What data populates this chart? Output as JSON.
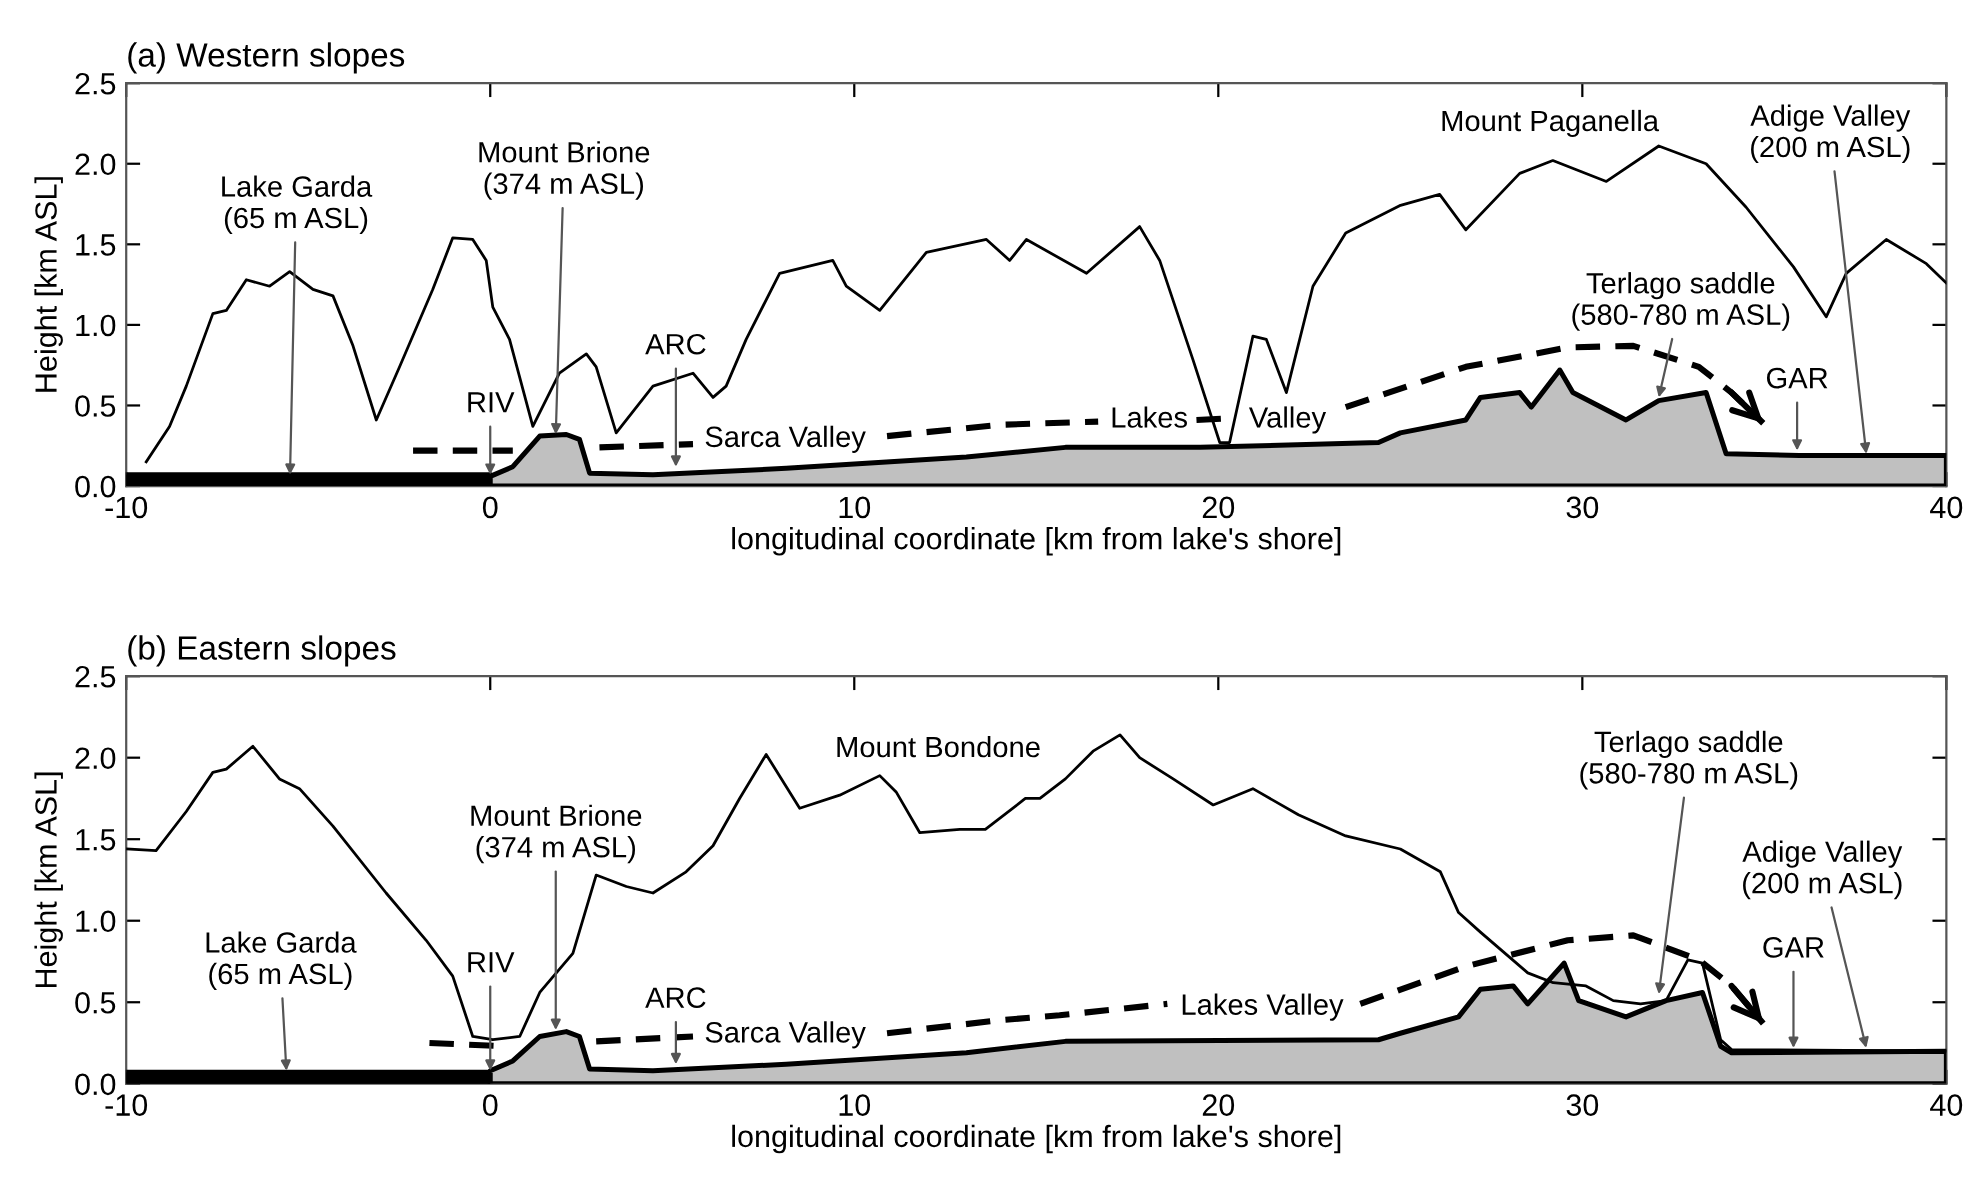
{
  "chart_data": [
    {
      "type": "line",
      "title": "(a) Western slopes",
      "xlabel": "longitudinal coordinate [km from lake's shore]",
      "ylabel": "Height [km ASL]",
      "xlim": [
        -10,
        40
      ],
      "xticks": [
        -10,
        0,
        10,
        20,
        30,
        40
      ],
      "ylim": [
        0,
        2.5
      ],
      "yticks": [
        {
          "value": 0,
          "label": "0.0"
        },
        0.5,
        {
          "value": 1,
          "label": "1.0"
        },
        1.5,
        {
          "value": 2,
          "label": "2.0"
        },
        2.5
      ],
      "series": [
        {
          "type": "area",
          "color": "#000000",
          "x": [
            -10,
            0
          ],
          "values": [
            0.07,
            0.07
          ]
        },
        {
          "type": "area",
          "color": "#c0c0c0",
          "x": [
            0,
            0.62,
            1.36,
            2.09,
            2.45,
            2.73,
            4.47,
            8.13,
            13.08,
            15.8,
            19.5,
            24.4,
            25.0,
            26.8,
            27.2,
            28.28,
            28.6,
            29.38,
            29.74,
            31.2,
            32.1,
            33.4,
            33.95,
            35.96,
            40
          ],
          "values": [
            0.06,
            0.12,
            0.31,
            0.32,
            0.29,
            0.08,
            0.07,
            0.11,
            0.18,
            0.24,
            0.24,
            0.27,
            0.33,
            0.41,
            0.55,
            0.58,
            0.49,
            0.72,
            0.58,
            0.41,
            0.53,
            0.58,
            0.2,
            0.19,
            0.19
          ]
        },
        {
          "color": "#000000",
          "line_style": "solid",
          "x": [
            -9.45,
            -8.81,
            -8.35,
            -7.62,
            -7.25,
            -6.7,
            -6.06,
            -5.51,
            -4.87,
            -4.32,
            -3.77,
            -3.13,
            -2.49,
            -1.58,
            -1.03,
            -0.48,
            -0.11,
            0.07,
            0.53,
            1.17,
            1.9,
            2.64,
            2.91,
            3.46,
            4.47,
            5.57,
            6.12,
            6.48,
            7.03,
            7.95,
            9.41,
            9.78,
            10.7,
            11.98,
            13.63,
            14.27,
            14.73,
            16.38,
            17.84,
            18.39,
            19.31,
            20.04,
            20.31,
            20.95,
            21.32,
            21.87,
            22.6,
            23.5,
            24.98,
            26.08,
            26.8,
            28.28,
            29.19,
            30.66,
            32.1,
            33.4,
            34.5,
            35.8,
            36.7,
            37.25,
            38.35,
            39.45,
            40
          ],
          "values": [
            0.15,
            0.37,
            0.62,
            1.07,
            1.09,
            1.28,
            1.24,
            1.33,
            1.22,
            1.18,
            0.87,
            0.41,
            0.74,
            1.22,
            1.54,
            1.53,
            1.4,
            1.11,
            0.91,
            0.37,
            0.7,
            0.82,
            0.74,
            0.33,
            0.62,
            0.7,
            0.55,
            0.62,
            0.91,
            1.32,
            1.4,
            1.24,
            1.09,
            1.45,
            1.53,
            1.4,
            1.53,
            1.32,
            1.61,
            1.4,
            0.78,
            0.27,
            0.27,
            0.93,
            0.91,
            0.58,
            1.24,
            1.57,
            1.74,
            1.81,
            1.59,
            1.94,
            2.02,
            1.89,
            2.11,
            2.0,
            1.73,
            1.36,
            1.05,
            1.32,
            1.53,
            1.38,
            1.26
          ]
        },
        {
          "color": "#000000",
          "line_style": "dashed",
          "x": [
            -2.12,
            0.62,
            1.8,
            3.0,
            5.57,
            8.1,
            10.9,
            14.0,
            16.7,
            18.1,
            19.4,
            20.3,
            21.9,
            23.5,
            26.8,
            29.6,
            31.4,
            33.2,
            34.1,
            34.97
          ],
          "values": [
            0.22,
            0.22,
            null,
            0.24,
            0.26,
            null,
            0.31,
            0.38,
            0.4,
            null,
            0.41,
            0.42,
            null,
            0.49,
            0.74,
            0.86,
            0.87,
            0.74,
            0.58,
            0.39
          ]
        }
      ],
      "annotations": [
        {
          "text": "Lake Garda\n(65 m ASL)",
          "x": -5.5,
          "y": 0.07
        },
        {
          "text": "Mount Brione\n(374 m ASL)",
          "x": 1.8,
          "y": 0.32
        },
        {
          "text": "RIV",
          "x": 0,
          "y": 0.07
        },
        {
          "text": "ARC",
          "x": 5.1,
          "y": 0.12
        },
        "Sarca Valley",
        "Lakes",
        "Valley",
        "Mount Paganella",
        {
          "text": "Terlago saddle\n(580-780 m ASL)",
          "x": 32.1,
          "y": 0.55
        },
        {
          "text": "GAR",
          "x": 35.9,
          "y": 0.22
        },
        {
          "text": "Adige Valley\n(200 m ASL)",
          "x": 37.8,
          "y": 0.2
        }
      ]
    },
    {
      "type": "line",
      "title": "(b) Eastern slopes",
      "xlabel": "longitudinal coordinate [km from lake's shore]",
      "ylabel": "Height [km ASL]",
      "xlim": [
        -10,
        40
      ],
      "xticks": [
        -10,
        0,
        10,
        20,
        30,
        40
      ],
      "ylim": [
        0,
        2.5
      ],
      "yticks": [
        {
          "value": 0,
          "label": "0.0"
        },
        0.5,
        {
          "value": 1,
          "label": "1.0"
        },
        1.5,
        {
          "value": 2,
          "label": "2.0"
        },
        2.5
      ],
      "series": [
        {
          "type": "area",
          "color": "#000000",
          "x": [
            -10,
            0
          ],
          "values": [
            0.07,
            0.07
          ]
        },
        {
          "type": "area",
          "color": "#c0c0c0",
          "x": [
            0,
            0.62,
            1.36,
            2.09,
            2.45,
            2.73,
            4.47,
            8.13,
            13.08,
            15.8,
            24.4,
            25.0,
            26.6,
            27.2,
            28.1,
            28.5,
            29.5,
            29.9,
            31.2,
            32.3,
            33.3,
            33.8,
            34.1,
            40
          ],
          "values": [
            0.08,
            0.14,
            0.29,
            0.32,
            0.29,
            0.09,
            0.08,
            0.12,
            0.19,
            0.26,
            0.27,
            0.31,
            0.41,
            0.58,
            0.6,
            0.49,
            0.74,
            0.51,
            0.41,
            0.51,
            0.56,
            0.23,
            0.19,
            0.2
          ]
        },
        {
          "color": "#000000",
          "line_style": "solid",
          "x": [
            -10,
            -9.18,
            -8.35,
            -7.62,
            -7.25,
            -6.52,
            -5.79,
            -5.24,
            -4.32,
            -2.86,
            -1.76,
            -1.03,
            -0.48,
            0.07,
            0.81,
            1.36,
            2.27,
            2.91,
            3.74,
            4.47,
            5.38,
            6.12,
            6.85,
            7.58,
            8.5,
            9.6,
            10.7,
            11.15,
            11.8,
            12.9,
            13.6,
            14.7,
            15.1,
            15.8,
            16.56,
            17.3,
            17.84,
            18.76,
            19.86,
            20.95,
            22.2,
            23.5,
            25.0,
            26.1,
            26.6,
            27.2,
            28.5,
            29.2,
            30.1,
            30.85,
            31.6,
            32.3,
            32.9,
            33.3,
            33.8,
            34.1,
            40
          ],
          "values": [
            1.44,
            1.43,
            1.67,
            1.91,
            1.93,
            2.07,
            1.87,
            1.81,
            1.58,
            1.17,
            0.88,
            0.66,
            0.29,
            0.27,
            0.29,
            0.56,
            0.8,
            1.28,
            1.21,
            1.17,
            1.3,
            1.46,
            1.75,
            2.02,
            1.69,
            1.77,
            1.89,
            1.79,
            1.54,
            1.56,
            1.56,
            1.75,
            1.75,
            1.87,
            2.04,
            2.14,
            2.0,
            1.87,
            1.71,
            1.81,
            1.65,
            1.52,
            1.44,
            1.3,
            1.05,
            0.93,
            0.68,
            0.62,
            0.6,
            0.51,
            0.49,
            0.51,
            0.76,
            0.74,
            0.27,
            0.21,
            0.2
          ]
        },
        {
          "color": "#000000",
          "line_style": "dashed",
          "x": [
            -1.67,
            0.44,
            1.8,
            2.91,
            5.57,
            8.1,
            10.9,
            14.0,
            15.64,
            18.6,
            21.2,
            23.9,
            26.8,
            29.6,
            31.4,
            33.2,
            34.1,
            34.97
          ],
          "values": [
            0.25,
            0.23,
            null,
            0.26,
            0.29,
            null,
            0.31,
            0.39,
            0.42,
            0.49,
            null,
            0.49,
            0.72,
            0.88,
            0.91,
            0.76,
            0.6,
            0.37
          ]
        }
      ],
      "annotations": [
        {
          "text": "Lake Garda\n(65 m ASL)",
          "x": -5.6,
          "y": 0.08
        },
        {
          "text": "Mount Brione\n(374 m ASL)",
          "x": 1.8,
          "y": 0.33
        },
        {
          "text": "RIV",
          "x": 0,
          "y": 0.08
        },
        {
          "text": "ARC",
          "x": 5.1,
          "y": 0.12
        },
        "Sarca Valley",
        "Mount Bondone",
        "Lakes Valley",
        {
          "text": "Terlago saddle\n(580-780 m ASL)",
          "x": 32.1,
          "y": 0.55
        },
        {
          "text": "GAR",
          "x": 35.8,
          "y": 0.22
        },
        {
          "text": "Adige Valley\n(200 m ASL)",
          "x": 37.8,
          "y": 0.22
        }
      ]
    }
  ]
}
